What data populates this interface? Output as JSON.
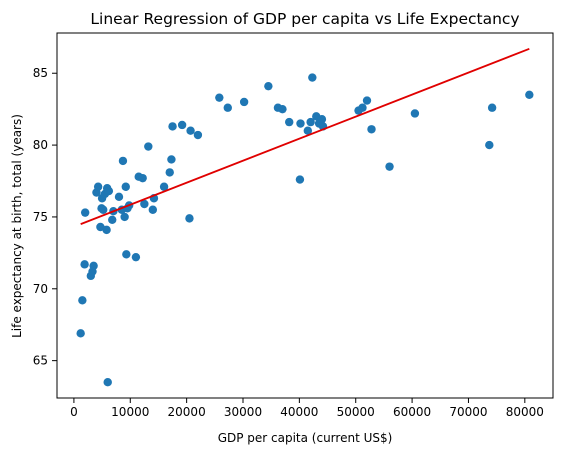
{
  "chart_data": {
    "type": "scatter",
    "title": "Linear Regression of GDP per capita vs Life Expectancy",
    "xlabel": "GDP per capita (current US$)",
    "ylabel": "Life expectancy at birth, total (years)",
    "xlim": [
      -3000,
      85000
    ],
    "ylim": [
      62.4,
      87.8
    ],
    "xticks": [
      0,
      10000,
      20000,
      30000,
      40000,
      50000,
      60000,
      70000,
      80000
    ],
    "yticks": [
      65,
      70,
      75,
      80,
      85
    ],
    "grid": false,
    "colors": {
      "points": "#1f77b4",
      "regression": "#e00000"
    },
    "series": [
      {
        "type": "scatter",
        "points": [
          [
            1200,
            66.9
          ],
          [
            1500,
            69.2
          ],
          [
            1900,
            71.7
          ],
          [
            2000,
            75.3
          ],
          [
            3000,
            70.9
          ],
          [
            3300,
            71.2
          ],
          [
            3500,
            71.6
          ],
          [
            4000,
            76.7
          ],
          [
            4300,
            77.1
          ],
          [
            4700,
            74.3
          ],
          [
            4900,
            75.6
          ],
          [
            5000,
            76.3
          ],
          [
            5200,
            75.5
          ],
          [
            5500,
            76.6
          ],
          [
            5800,
            74.1
          ],
          [
            5900,
            77.0
          ],
          [
            6000,
            63.5
          ],
          [
            6200,
            76.8
          ],
          [
            6800,
            74.8
          ],
          [
            7000,
            75.4
          ],
          [
            8000,
            76.4
          ],
          [
            8500,
            75.5
          ],
          [
            8700,
            78.9
          ],
          [
            9000,
            75.0
          ],
          [
            9200,
            77.1
          ],
          [
            9300,
            72.4
          ],
          [
            9500,
            75.6
          ],
          [
            9800,
            75.8
          ],
          [
            11000,
            72.2
          ],
          [
            11500,
            77.8
          ],
          [
            12200,
            77.7
          ],
          [
            12500,
            75.9
          ],
          [
            13200,
            79.9
          ],
          [
            14000,
            75.5
          ],
          [
            14200,
            76.3
          ],
          [
            16000,
            77.1
          ],
          [
            17000,
            78.1
          ],
          [
            17300,
            79.0
          ],
          [
            17500,
            81.3
          ],
          [
            19200,
            81.4
          ],
          [
            20500,
            74.9
          ],
          [
            20700,
            81.0
          ],
          [
            22000,
            80.7
          ],
          [
            25800,
            83.3
          ],
          [
            27300,
            82.6
          ],
          [
            30200,
            83.0
          ],
          [
            34500,
            84.1
          ],
          [
            36200,
            82.6
          ],
          [
            37000,
            82.5
          ],
          [
            38200,
            81.6
          ],
          [
            40100,
            77.6
          ],
          [
            40200,
            81.5
          ],
          [
            41500,
            81.0
          ],
          [
            42000,
            81.6
          ],
          [
            42300,
            84.7
          ],
          [
            43000,
            82.0
          ],
          [
            43500,
            81.5
          ],
          [
            44000,
            81.8
          ],
          [
            44200,
            81.3
          ],
          [
            50500,
            82.4
          ],
          [
            51200,
            82.6
          ],
          [
            52000,
            83.1
          ],
          [
            52800,
            81.1
          ],
          [
            56000,
            78.5
          ],
          [
            60500,
            82.2
          ],
          [
            73700,
            80.0
          ],
          [
            74200,
            82.6
          ],
          [
            80800,
            83.5
          ]
        ]
      },
      {
        "type": "line",
        "points": [
          [
            1200,
            74.5
          ],
          [
            80800,
            86.7
          ]
        ]
      }
    ]
  }
}
